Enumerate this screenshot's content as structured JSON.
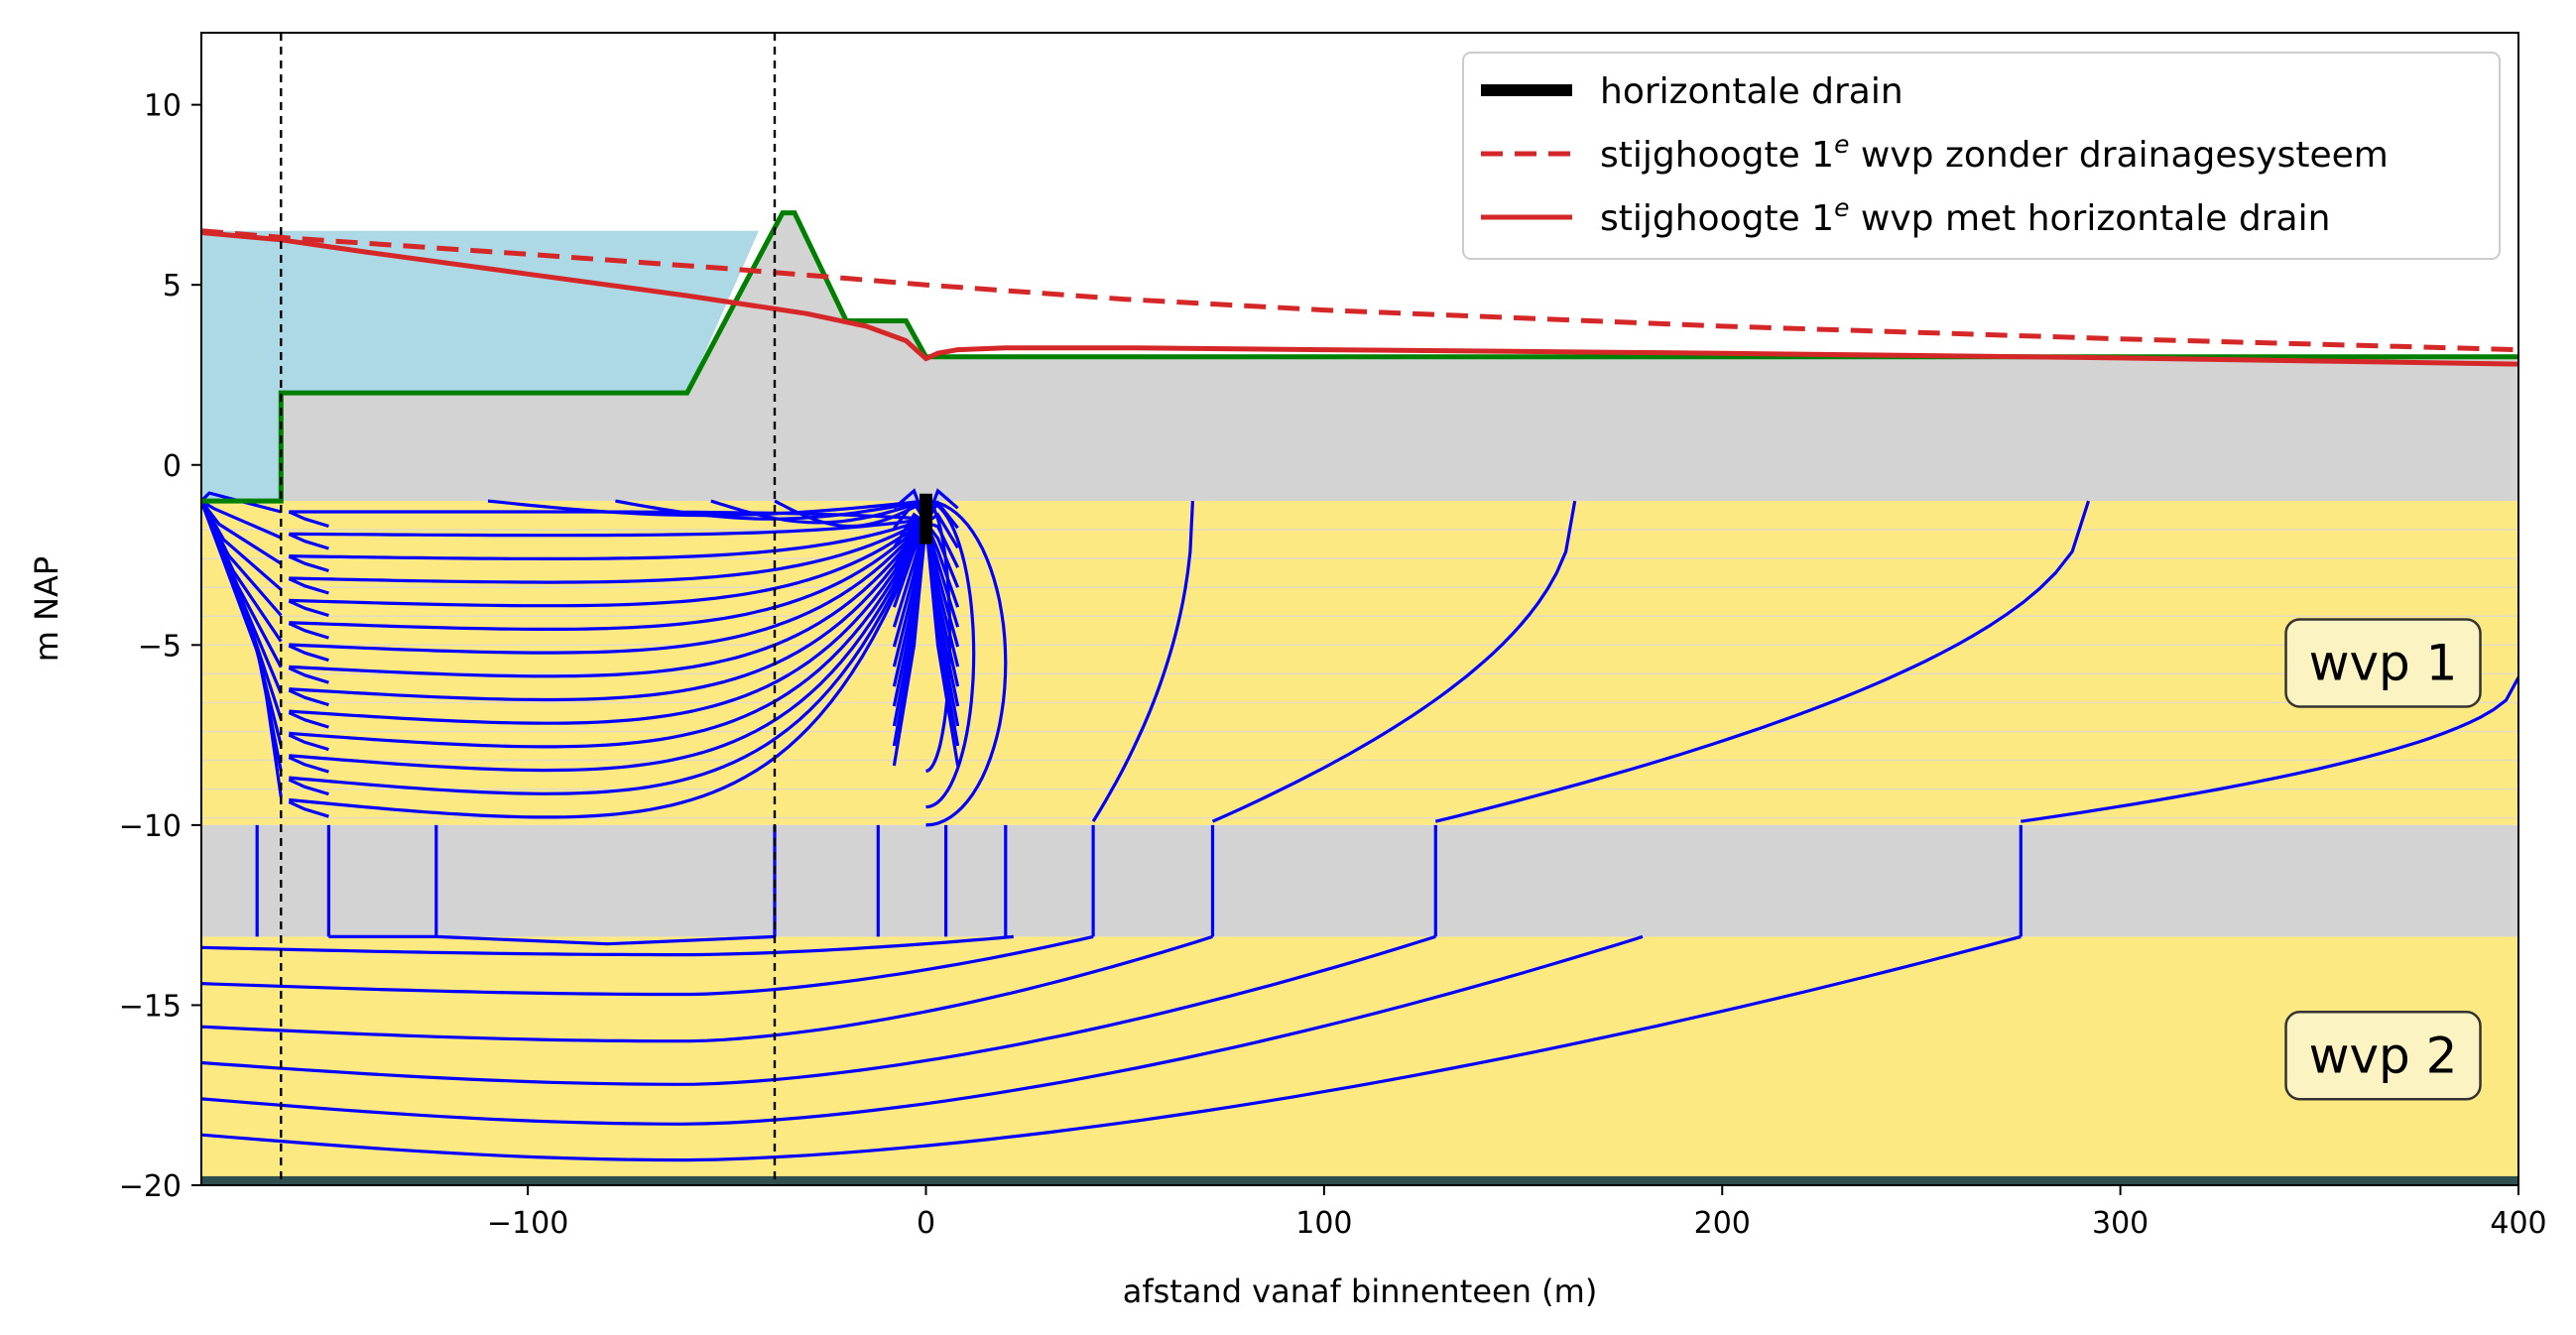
{
  "chart_data": {
    "type": "line",
    "title": "",
    "xlabel": "afstand vanaf binnenteen (m)",
    "ylabel": "m NAP",
    "xlim": [
      -182,
      400
    ],
    "ylim": [
      -20,
      12
    ],
    "xticks": [
      -100,
      0,
      100,
      200,
      300,
      400
    ],
    "xtick_labels": [
      "−100",
      "0",
      "100",
      "200",
      "300",
      "400"
    ],
    "yticks": [
      -20,
      -15,
      -10,
      -5,
      0,
      5,
      10
    ],
    "ytick_labels": [
      "−20",
      "−15",
      "−10",
      "−5",
      "0",
      "5",
      "10"
    ],
    "grid": false,
    "legend_position": "upper-right",
    "colors": {
      "water": "#add8e6",
      "clay": "#d3d3d3",
      "sand": "#fde982",
      "base": "#2f4f4f",
      "profile": "#008000",
      "head": "#d62728",
      "flowlines": "#0000ff",
      "drain": "#000000"
    },
    "legend": [
      {
        "type": "drain",
        "label_pre": "horizontale drain",
        "sup": "",
        "label_post": ""
      },
      {
        "type": "dashed",
        "label_pre": "stijghoogte 1",
        "sup": "e",
        "label_post": " wvp zonder drainagesysteem"
      },
      {
        "type": "solid",
        "label_pre": "stijghoogte 1",
        "sup": "e",
        "label_post": " wvp met horizontale drain"
      }
    ],
    "layer_labels": [
      {
        "text": "wvp 1",
        "x": 366,
        "y": -5.5
      },
      {
        "text": "wvp 2",
        "x": 366,
        "y": -16.4
      }
    ],
    "layers": [
      {
        "name": "wvp 1",
        "top": -1,
        "bottom": -10,
        "fill": "sand"
      },
      {
        "name": "",
        "top": -10,
        "bottom": -13.1,
        "fill": "clay"
      },
      {
        "name": "wvp 2",
        "top": -13.1,
        "bottom": -20,
        "fill": "sand"
      }
    ],
    "vlines": [
      -162,
      -38
    ],
    "ground_profile": {
      "x": [
        -182,
        -162,
        -162,
        -60,
        -36,
        -33,
        -20,
        -5,
        0,
        400
      ],
      "y": [
        -1,
        -1,
        2,
        2,
        7,
        7,
        4,
        4,
        3,
        3
      ]
    },
    "water_level": {
      "top": 6.5,
      "x_left": -182,
      "x_right": -34
    },
    "drain": {
      "x": 0,
      "y_top": -0.8,
      "y_bottom": -2.2
    },
    "series": [
      {
        "name": "stijghoogte 1e wvp zonder drainagesysteem",
        "style": "dashed",
        "x": [
          -182,
          -160,
          -100,
          -50,
          0,
          50,
          100,
          200,
          300,
          400
        ],
        "y": [
          6.5,
          6.3,
          5.85,
          5.45,
          5.0,
          4.6,
          4.3,
          3.85,
          3.5,
          3.2
        ]
      },
      {
        "name": "stijghoogte 1e wvp met horizontale drain",
        "style": "solid",
        "x": [
          -182,
          -162,
          -140,
          -100,
          -60,
          -30,
          -15,
          -5,
          0,
          3,
          8,
          20,
          50,
          100,
          200,
          300,
          400
        ],
        "y": [
          6.45,
          6.25,
          5.9,
          5.3,
          4.7,
          4.2,
          3.85,
          3.45,
          2.95,
          3.1,
          3.2,
          3.25,
          3.25,
          3.2,
          3.1,
          2.97,
          2.8
        ]
      }
    ],
    "flowlines_left": [
      {
        "xt": -182,
        "ys": -13.5,
        "ye": -18.8
      },
      {
        "xt": -174,
        "ys": -13.2,
        "ye": -17.3
      },
      {
        "xt": -168,
        "ys": -13.0,
        "ye": -16.2
      },
      {
        "xt": -160,
        "ys": -12.6,
        "ye": -15.2
      },
      {
        "xt": -151,
        "ys": -12.0,
        "ye": -14.2
      },
      {
        "xt": -142,
        "ys": -11.4,
        "ye": -13.2
      }
    ],
    "flowlines_middle": [
      {
        "xt": -182,
        "x1": -163,
        "y1": -10,
        "ys": -12.2,
        "ye": -11.0
      },
      {
        "xt": -176,
        "x1": -149,
        "y1": -10,
        "ys": -12.8,
        "ye": -12.2
      },
      {
        "xt": -170,
        "x1": -129,
        "y1": -10,
        "ys": -13.1,
        "ye": -12.8
      }
    ],
    "flowlines_bowl": [
      {
        "xt": -168,
        "x1": -150,
        "x2": 10,
        "y1": -10,
        "ys": -13.0,
        "ye": -13.1
      },
      {
        "xt": -160,
        "x1": -123,
        "x2": -19,
        "y1": -10,
        "ys": -13.2,
        "ye": -13.2
      }
    ],
    "flowlines_right": [
      {
        "xt": 18,
        "ys": -13.0,
        "ye": -12.4
      },
      {
        "xt": 42,
        "ys": -13.3,
        "ye": -11.7
      },
      {
        "xt": 72,
        "ys": -14.1,
        "ye": -12.6
      },
      {
        "xt": 128,
        "ys": -15.3,
        "ye": -12.9
      },
      {
        "xt": 275,
        "ys": -16.7,
        "ye": -13.5
      }
    ],
    "flowlines_top": [
      {
        "xt": 42,
        "xs": 67,
        "ys": -1.0,
        "ye": -9.9
      },
      {
        "xt": 72,
        "xs": 163,
        "ys": -1.0,
        "ye": -9.9
      },
      {
        "xt": 128,
        "xs": 292,
        "ys": -1.0,
        "ye": -9.9
      },
      {
        "xt": 275,
        "xs": 400,
        "ys": -5.9,
        "ye": -9.9
      }
    ]
  }
}
